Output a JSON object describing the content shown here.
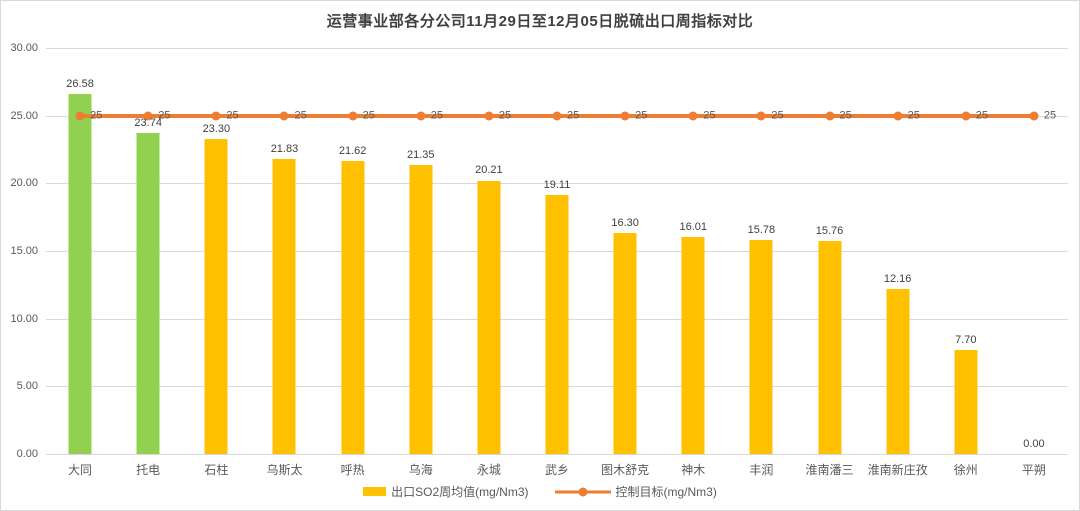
{
  "chart_data": {
    "type": "bar",
    "title": "运营事业部各分公司11月29日至12月05日脱硫出口周指标对比",
    "categories": [
      "大同",
      "托电",
      "石柱",
      "乌斯太",
      "呼热",
      "乌海",
      "永城",
      "武乡",
      "图木舒克",
      "神木",
      "丰润",
      "淮南潘三",
      "淮南新庄孜",
      "徐州",
      "平朔"
    ],
    "series": [
      {
        "name": "出口SO2周均值(mg/Nm3)",
        "type": "bar",
        "values": [
          26.58,
          23.74,
          23.3,
          21.83,
          21.62,
          21.35,
          20.21,
          19.11,
          16.3,
          16.01,
          15.78,
          15.76,
          12.16,
          7.7,
          0.0
        ],
        "value_labels": [
          "26.58",
          "23.74",
          "23.30",
          "21.83",
          "21.62",
          "21.35",
          "20.21",
          "19.11",
          "16.30",
          "16.01",
          "15.78",
          "15.76",
          "12.16",
          "7.70",
          "0.00"
        ],
        "bar_colors": [
          "#92D050",
          "#92D050",
          "#FFC000",
          "#FFC000",
          "#FFC000",
          "#FFC000",
          "#FFC000",
          "#FFC000",
          "#FFC000",
          "#FFC000",
          "#FFC000",
          "#FFC000",
          "#FFC000",
          "#FFC000",
          "#FFC000"
        ]
      },
      {
        "name": "控制目标(mg/Nm3)",
        "type": "line",
        "values": [
          25,
          25,
          25,
          25,
          25,
          25,
          25,
          25,
          25,
          25,
          25,
          25,
          25,
          25,
          25
        ],
        "value_labels": [
          "25",
          "25",
          "25",
          "25",
          "25",
          "25",
          "25",
          "25",
          "25",
          "25",
          "25",
          "25",
          "25",
          "25",
          "25"
        ],
        "color": "#ED7D31"
      }
    ],
    "ylim": [
      0,
      30
    ],
    "ytick_step": 5,
    "ytick_labels": [
      "0.00",
      "5.00",
      "10.00",
      "15.00",
      "20.00",
      "25.00",
      "30.00"
    ],
    "grid": true,
    "legend_position": "bottom",
    "colors": {
      "bar_default": "#FFC000",
      "bar_highlight": "#92D050",
      "target_line": "#ED7D31",
      "gridline": "#D9D9D9",
      "axis_text": "#595959",
      "data_label_text": "#404040"
    }
  }
}
